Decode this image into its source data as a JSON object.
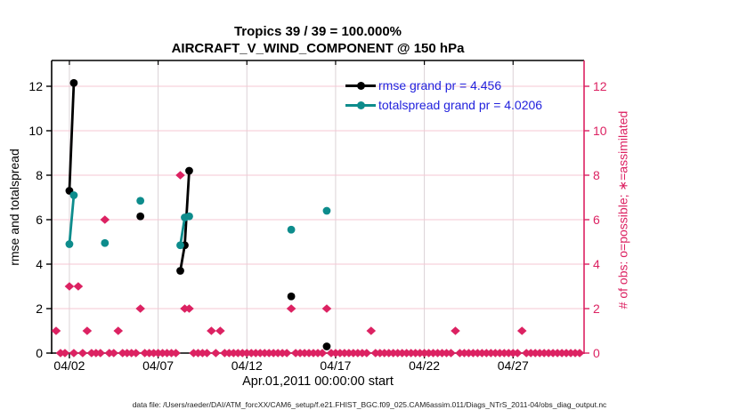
{
  "title": {
    "line1": "Tropics 39 / 39 = 100.000%",
    "line2": "AIRCRAFT_V_WIND_COMPONENT @ 150 hPa"
  },
  "footer": "data file: /Users/raeder/DAI/ATM_forcXX/CAM6_setup/f.e21.FHIST_BGC.f09_025.CAM6assim.011/Diags_NTrS_2011-04/obs_diag_output.nc",
  "chart_data": {
    "type": "line",
    "title": "Tropics 39 / 39 = 100.000% — AIRCRAFT_V_WIND_COMPONENT @ 150 hPa",
    "xlabel": "Apr.01,2011 00:00:00 start",
    "ylabel_left": "rmse and totalspread",
    "ylabel_right": "# of obs: o=possible; ∗=assimilated",
    "grid": true,
    "legend_location": "upper center-right, no box",
    "x_axis": {
      "min": 1,
      "max": 31,
      "unit": "day of April 2011",
      "ticks": [
        {
          "x": 2,
          "label": "04/02"
        },
        {
          "x": 7,
          "label": "04/07"
        },
        {
          "x": 12,
          "label": "04/12"
        },
        {
          "x": 17,
          "label": "04/17"
        },
        {
          "x": 22,
          "label": "04/22"
        },
        {
          "x": 27,
          "label": "04/27"
        }
      ]
    },
    "y_axis": {
      "min": 0,
      "max": 13.16,
      "ticks": [
        0,
        2,
        4,
        6,
        8,
        10,
        12
      ]
    },
    "colors": {
      "rmse": "#000000",
      "totalspread": "#0D8C8C",
      "obs": "#DC2262",
      "legend_text": "#2222DD",
      "grid_h": "#F5C7D3",
      "grid_v": "#DBD2D6"
    },
    "legend": [
      {
        "series": "rmse",
        "label": "rmse grand pr = 4.456"
      },
      {
        "series": "totalspread",
        "label": "totalspread grand pr = 4.0206"
      }
    ],
    "series": [
      {
        "name": "rmse",
        "color_key": "rmse",
        "segments": [
          [
            [
              2.0,
              7.3
            ],
            [
              2.25,
              12.15
            ]
          ],
          [
            [
              8.25,
              3.7
            ],
            [
              8.5,
              4.85
            ],
            [
              8.75,
              8.2
            ]
          ]
        ],
        "points": [
          [
            6.0,
            6.15
          ],
          [
            14.5,
            2.55
          ],
          [
            16.5,
            0.3
          ]
        ]
      },
      {
        "name": "totalspread",
        "color_key": "totalspread",
        "segments": [
          [
            [
              2.0,
              4.9
            ],
            [
              2.25,
              7.1
            ]
          ],
          [
            [
              8.25,
              4.85
            ],
            [
              8.5,
              6.1
            ],
            [
              8.75,
              6.15
            ]
          ]
        ],
        "points": [
          [
            4.0,
            4.95
          ],
          [
            6.0,
            6.85
          ],
          [
            14.5,
            5.55
          ],
          [
            16.5,
            6.4
          ]
        ]
      }
    ],
    "obs_counts": {
      "marker": "diamond",
      "nonzero": [
        [
          1.25,
          1
        ],
        [
          2.0,
          3
        ],
        [
          2.5,
          3
        ],
        [
          3.0,
          1
        ],
        [
          4.0,
          6
        ],
        [
          4.75,
          1
        ],
        [
          6.0,
          2
        ],
        [
          8.25,
          8
        ],
        [
          8.5,
          2
        ],
        [
          8.75,
          2
        ],
        [
          10.0,
          1
        ],
        [
          10.5,
          1
        ],
        [
          14.5,
          2
        ],
        [
          16.5,
          2
        ],
        [
          19.0,
          1
        ],
        [
          23.75,
          1
        ],
        [
          27.5,
          1
        ]
      ],
      "zero_run": {
        "start": 1.5,
        "end": 30.75,
        "step": 0.25,
        "skip": [
          2.0,
          2.5,
          3.0,
          4.0,
          4.75,
          6.0,
          8.25,
          8.5,
          8.75,
          10.0,
          10.5,
          14.5,
          16.5,
          19.0,
          23.75,
          27.5
        ]
      }
    }
  }
}
